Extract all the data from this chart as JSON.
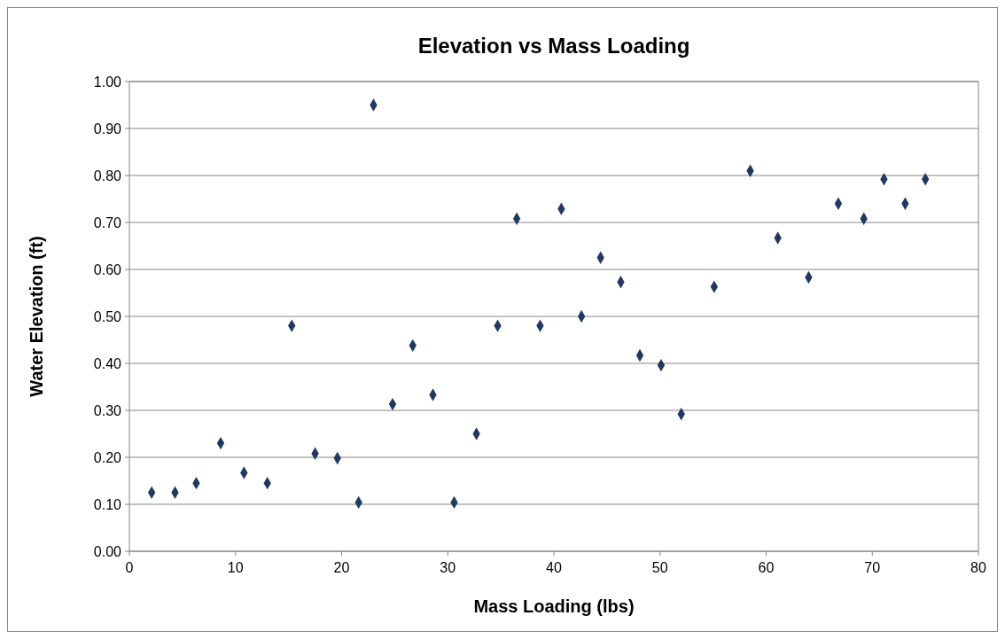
{
  "chart_data": {
    "type": "scatter",
    "title": "Elevation vs Mass Loading",
    "xlabel": "Mass Loading (lbs)",
    "ylabel": "Water Elevation (ft)",
    "x": [
      2.1,
      4.3,
      6.3,
      8.6,
      10.8,
      13.0,
      15.3,
      17.5,
      19.6,
      21.6,
      23.0,
      24.8,
      26.7,
      28.6,
      30.6,
      32.7,
      34.7,
      36.5,
      38.7,
      40.7,
      42.6,
      44.4,
      46.3,
      48.1,
      50.1,
      52.0,
      55.1,
      58.5,
      61.1,
      64.0,
      66.8,
      69.2,
      71.1,
      73.1,
      75.0
    ],
    "series": [
      {
        "color": "#1f3864",
        "values": [
          0.125,
          0.125,
          0.145,
          0.23,
          0.167,
          0.145,
          0.48,
          0.208,
          0.198,
          0.104,
          0.95,
          0.313,
          0.438,
          0.333,
          0.104,
          0.25,
          0.48,
          0.708,
          0.48,
          0.729,
          0.5,
          0.625,
          0.573,
          0.417,
          0.396,
          0.292,
          0.563,
          0.81,
          0.667,
          0.583,
          0.74,
          0.708,
          0.792,
          0.74,
          0.792
        ]
      }
    ],
    "xlim": [
      0,
      80
    ],
    "xticks": [
      0,
      10,
      20,
      30,
      40,
      50,
      60,
      70,
      80
    ],
    "ylim": [
      0,
      1
    ],
    "yticks": [
      {
        "value": 0,
        "label": "0.00"
      },
      {
        "value": 0.1,
        "label": "0.10"
      },
      {
        "value": 0.2,
        "label": "0.20"
      },
      {
        "value": 0.3,
        "label": "0.30"
      },
      {
        "value": 0.4,
        "label": "0.40"
      },
      {
        "value": 0.5,
        "label": "0.50"
      },
      {
        "value": 0.6,
        "label": "0.60"
      },
      {
        "value": 0.7,
        "label": "0.70"
      },
      {
        "value": 0.8,
        "label": "0.80"
      },
      {
        "value": 0.9,
        "label": "0.90"
      },
      {
        "value": 1,
        "label": "1.00"
      }
    ],
    "grid": "y",
    "marker": "diamond"
  }
}
